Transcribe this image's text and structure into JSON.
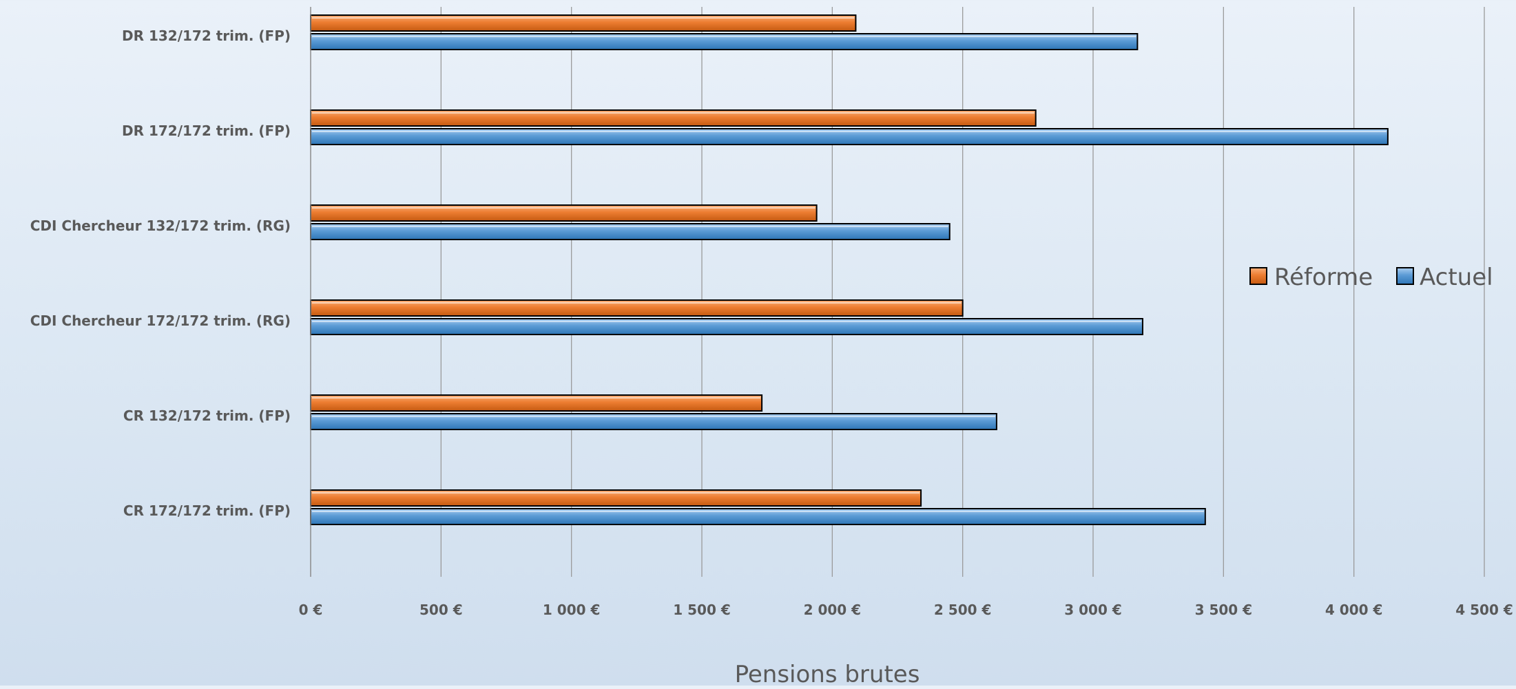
{
  "chart_data": {
    "type": "bar",
    "orientation": "horizontal",
    "categories": [
      "DR 132/172 trim. (FP)",
      "DR 172/172 trim. (FP)",
      "CDI Chercheur 132/172 trim. (RG)",
      "CDI Chercheur 172/172 trim. (RG)",
      "CR 132/172 trim. (FP)",
      "CR 172/172 trim. (FP)"
    ],
    "series": [
      {
        "name": "Réforme",
        "color": "#ed7d31",
        "values": [
          2090,
          2780,
          1940,
          2500,
          1730,
          2340
        ]
      },
      {
        "name": "Actuel",
        "color": "#5b9bd5",
        "values": [
          3170,
          4130,
          2450,
          3190,
          2630,
          3430
        ]
      }
    ],
    "xlim": [
      0,
      4500
    ],
    "xticks": [
      0,
      500,
      1000,
      1500,
      2000,
      2500,
      3000,
      3500,
      4000,
      4500
    ],
    "xtick_labels": [
      "0 €",
      "500 €",
      "1 000 €",
      "1 500 €",
      "2 000 €",
      "2 500 €",
      "3 000 €",
      "3 500 €",
      "4 000 €",
      "4 500 €"
    ],
    "xlabel": "Pensions brutes",
    "ylabel": "",
    "title": "",
    "grid": "vertical",
    "legend_position": "right"
  }
}
